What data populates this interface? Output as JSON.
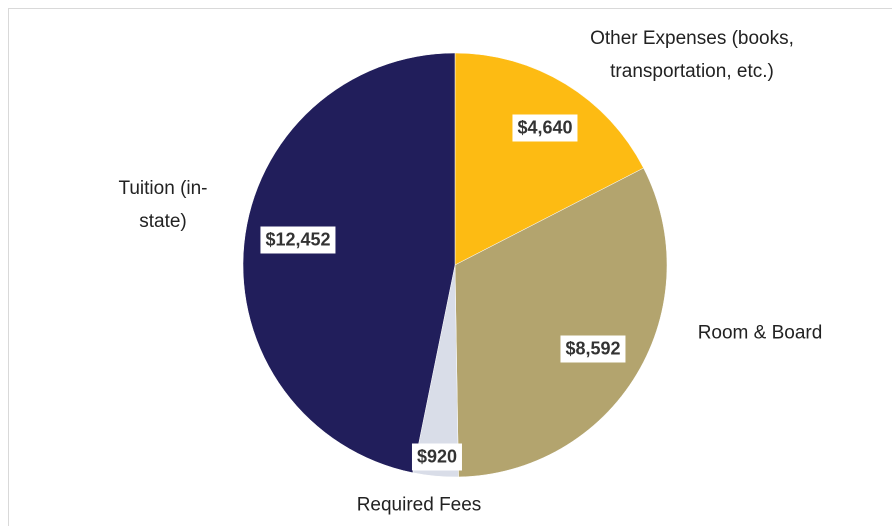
{
  "chart_data": {
    "type": "pie",
    "categories": [
      "Other Expenses (books, transportation, etc.)",
      "Room & Board",
      "Required Fees",
      "Tuition (in-state)"
    ],
    "values": [
      4640,
      8592,
      920,
      12452
    ],
    "value_labels": [
      "$4,640",
      "$8,592",
      "$920",
      "$12,452"
    ],
    "colors": [
      "#fdbb13",
      "#b3a46e",
      "#d9dde8",
      "#211e5b"
    ]
  }
}
